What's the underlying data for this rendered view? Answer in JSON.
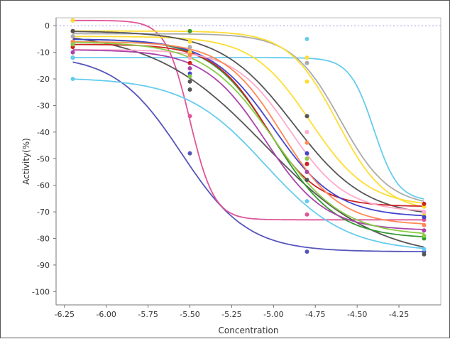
{
  "chart_data": {
    "type": "line",
    "xlabel": "Concentration",
    "ylabel": "Activity(%)",
    "xlim": [
      -6.3,
      -4.0
    ],
    "ylim": [
      -105,
      3
    ],
    "x_ticks": [
      -6.25,
      -6.0,
      -5.75,
      -5.5,
      -5.25,
      -5.0,
      -4.75,
      -4.5,
      -4.25
    ],
    "x_tick_labels": [
      "-6.25",
      "-6.00",
      "-5.75",
      "-5.50",
      "-5.25",
      "-5.00",
      "-4.75",
      "-4.50",
      "-4.25"
    ],
    "y_ticks": [
      0,
      -10,
      -20,
      -30,
      -40,
      -50,
      -60,
      -70,
      -80,
      -90,
      -100
    ],
    "y_tick_labels": [
      "0",
      "-10",
      "-20",
      "-30",
      "-40",
      "-50",
      "-60",
      "-70",
      "-80",
      "-90",
      "-100"
    ],
    "reference_line": {
      "y": 0,
      "style": "dotted",
      "color": "#9999ee"
    },
    "grid": false,
    "legend": "none",
    "points_x": [
      -6.2,
      -5.5,
      -4.8,
      -4.1
    ],
    "series": [
      {
        "color": "#5555bb",
        "values": [
          -12,
          -48,
          -85,
          -85
        ],
        "curve": {
          "top": -11,
          "bottom": -85,
          "ec50": -5.55,
          "slope": 2.2
        }
      },
      {
        "color": "#e0559a",
        "values": [
          2,
          -34,
          -71,
          -73
        ],
        "curve": {
          "top": 2,
          "bottom": -73,
          "ec50": -5.5,
          "slope": 6
        }
      },
      {
        "color": "#66ccee",
        "values": [
          -12,
          -12,
          -5,
          -67
        ],
        "curve": {
          "top": -12,
          "bottom": -66,
          "ec50": -4.4,
          "slope": 6
        }
      },
      {
        "color": "#66ccee",
        "values": [
          -20,
          -24,
          -66,
          -84
        ],
        "curve": {
          "top": -19.5,
          "bottom": -85,
          "ec50": -5.05,
          "slope": 1.8
        }
      },
      {
        "color": "#aaaaaa",
        "values": [
          -4,
          -8,
          -14,
          -68
        ],
        "curve": {
          "top": -3,
          "bottom": -68,
          "ec50": -4.6,
          "slope": 3
        }
      },
      {
        "color": "#ffdd33",
        "values": [
          -2,
          -6,
          -12,
          -71
        ],
        "curve": {
          "top": -2,
          "bottom": -70,
          "ec50": -4.62,
          "slope": 3
        }
      },
      {
        "color": "#ffdd33",
        "values": [
          2,
          -10,
          -21,
          -68
        ],
        "curve": {
          "top": -4,
          "bottom": -68,
          "ec50": -4.78,
          "slope": 2.5
        }
      },
      {
        "color": "#555555",
        "values": [
          -2,
          -21,
          -34,
          -72
        ],
        "curve": {
          "top": -2,
          "bottom": -72,
          "ec50": -4.88,
          "slope": 2
        }
      },
      {
        "color": "#555555",
        "values": [
          -2,
          -24,
          -58,
          -86
        ],
        "curve": {
          "top": -2,
          "bottom": -88,
          "ec50": -5.05,
          "slope": 1.3
        }
      },
      {
        "color": "#339933",
        "values": [
          -7,
          -2,
          -52,
          -80
        ],
        "curve": {
          "top": -5,
          "bottom": -80,
          "ec50": -5.0,
          "slope": 2.3
        }
      },
      {
        "color": "#cc2222",
        "values": [
          -8,
          -14,
          -52,
          -67
        ],
        "curve": {
          "top": -7,
          "bottom": -68,
          "ec50": -5.05,
          "slope": 2.8
        }
      },
      {
        "color": "#4444cc",
        "values": [
          -6,
          -18,
          -48,
          -72
        ],
        "curve": {
          "top": -5,
          "bottom": -72,
          "ec50": -5.0,
          "slope": 2.3
        }
      },
      {
        "color": "#ffaacc",
        "values": [
          -10,
          -12,
          -40,
          -70
        ],
        "curve": {
          "top": -9,
          "bottom": -70,
          "ec50": -4.9,
          "slope": 2.6
        }
      },
      {
        "color": "#ff8855",
        "values": [
          -6,
          -11,
          -44,
          -75
        ],
        "curve": {
          "top": -6,
          "bottom": -75,
          "ec50": -4.95,
          "slope": 2.5
        }
      },
      {
        "color": "#aa44aa",
        "values": [
          -10,
          -16,
          -55,
          -77
        ],
        "curve": {
          "top": -9,
          "bottom": -77,
          "ec50": -5.05,
          "slope": 2.4
        }
      },
      {
        "color": "#88cc44",
        "values": [
          -7,
          -19,
          -50,
          -79
        ],
        "curve": {
          "top": -6,
          "bottom": -79,
          "ec50": -5.0,
          "slope": 2.1
        }
      }
    ]
  }
}
